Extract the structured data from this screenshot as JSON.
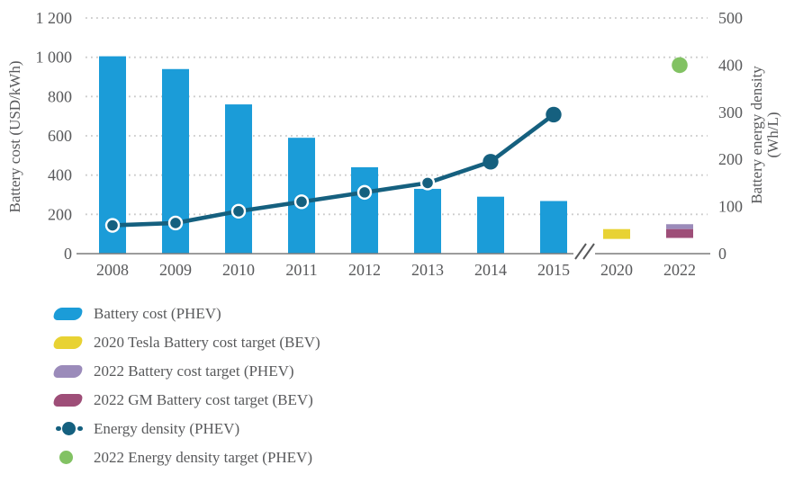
{
  "colors": {
    "bar_blue": "#1b9cd8",
    "line_teal": "#15607f",
    "target_yellow": "#e8d233",
    "target_lavender": "#9b8bba",
    "target_magenta": "#9e4e78",
    "target_green": "#82c263",
    "grid": "#c9c9c9",
    "axis": "#7b7b7b",
    "text": "#58595b"
  },
  "chart_data": {
    "type": "bar+line combo with axis break and target markers",
    "categories": [
      "2008",
      "2009",
      "2010",
      "2011",
      "2012",
      "2013",
      "2014",
      "2015",
      "2020",
      "2022"
    ],
    "axis_break": {
      "after": "2015",
      "symbol": "//"
    },
    "left_axis": {
      "title": "Battery cost (USD/kWh)",
      "ticks": [
        "0",
        "200",
        "400",
        "600",
        "800",
        "1 000",
        "1 200"
      ],
      "tick_step": 200,
      "range": [
        0,
        1200
      ],
      "grid": "dotted horizontal lines at each 200"
    },
    "right_axis": {
      "title_line1": "Battery energy density",
      "title_line2": "(Wh/L)",
      "ticks": [
        "0",
        "100",
        "200",
        "300",
        "400",
        "500"
      ],
      "tick_step": 100,
      "range": [
        0,
        500
      ]
    },
    "series": [
      {
        "name": "Battery cost (PHEV)",
        "type": "bar",
        "axis": "left",
        "color_key": "bar_blue",
        "values": {
          "2008": 1005,
          "2009": 940,
          "2010": 760,
          "2011": 590,
          "2012": 440,
          "2013": 330,
          "2014": 290,
          "2015": 268
        }
      },
      {
        "name": "Energy density (PHEV)",
        "type": "line",
        "axis": "right",
        "color_key": "line_teal",
        "ring_markers_through": "2013",
        "values": {
          "2008": 60,
          "2009": 65,
          "2010": 90,
          "2011": 110,
          "2012": 130,
          "2013": 150,
          "2014": 195,
          "2015": 295
        }
      },
      {
        "name": "2020 Tesla Battery cost target (BEV)",
        "type": "range",
        "axis": "left",
        "color_key": "target_yellow",
        "category": "2020",
        "low": 75,
        "high": 125
      },
      {
        "name": "2022 Battery cost target (PHEV)",
        "type": "range",
        "axis": "left",
        "color_key": "target_lavender",
        "category": "2022",
        "low": 125,
        "high": 150
      },
      {
        "name": "2022 GM Battery cost target (BEV)",
        "type": "range",
        "axis": "left",
        "color_key": "target_magenta",
        "category": "2022",
        "low": 80,
        "high": 125
      },
      {
        "name": "2022 Energy density target (PHEV)",
        "type": "point",
        "axis": "right",
        "color_key": "target_green",
        "category": "2022",
        "value": 400
      }
    ]
  },
  "legend": {
    "items": [
      {
        "label": "Battery cost (PHEV)",
        "marker": "pill",
        "color_key": "bar_blue"
      },
      {
        "label": "2020 Tesla Battery cost target (BEV)",
        "marker": "pill",
        "color_key": "target_yellow"
      },
      {
        "label": "2022 Battery cost target (PHEV)",
        "marker": "pill",
        "color_key": "target_lavender"
      },
      {
        "label": "2022 GM Battery cost target (BEV)",
        "marker": "pill",
        "color_key": "target_magenta"
      },
      {
        "label": "Energy density (PHEV)",
        "marker": "line-dot",
        "color_key": "line_teal"
      },
      {
        "label": "2022 Energy density target (PHEV)",
        "marker": "dot",
        "color_key": "target_green"
      }
    ]
  }
}
